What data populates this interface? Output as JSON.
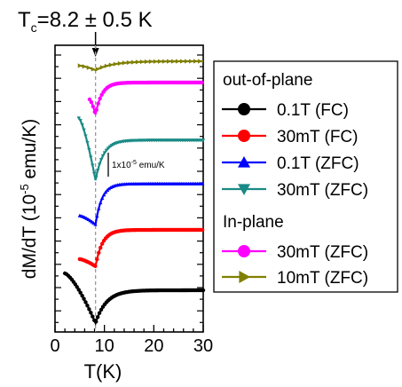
{
  "chart_data": {
    "type": "line",
    "annotation_title": "T",
    "annotation_title_sub": "c",
    "annotation_value": "=8.2 ± 0.5 K",
    "tc": 8.2,
    "xlabel": "T(K)",
    "ylabel_main": "dM/dT (10",
    "ylabel_exp": "-5",
    "ylabel_unit": " emu/K)",
    "xlim": [
      0,
      30
    ],
    "xticks": [
      0,
      10,
      20,
      30
    ],
    "scale_bar_label": "1x10",
    "scale_bar_exp": "-5",
    "scale_bar_unit": " emu/K",
    "legend": {
      "group1": "out-of-plane",
      "group2": "In-plane",
      "entries": [
        {
          "label": "0.1T (FC)",
          "color": "#000000",
          "marker": "circle"
        },
        {
          "label": "30mT (FC)",
          "color": "#ff0000",
          "marker": "circle"
        },
        {
          "label": "0.1T (ZFC)",
          "color": "#0000ff",
          "marker": "triangle-up"
        },
        {
          "label": "30mT (ZFC)",
          "color": "#1a8a86",
          "marker": "triangle-down"
        },
        {
          "label": "30mT (ZFC)",
          "color": "#ff00ff",
          "marker": "circle"
        },
        {
          "label": "10mT (ZFC)",
          "color": "#7f7f00",
          "marker": "triangle-right"
        }
      ]
    },
    "series": [
      {
        "name": "0.1T (FC)",
        "color": "#000000",
        "x_start": 2,
        "min_t": 8.2,
        "baseline_shift": 0,
        "depth": 1.0,
        "curves": "black"
      },
      {
        "name": "30mT (FC)",
        "color": "#ff0000",
        "x_start": 5,
        "min_t": 8.2,
        "baseline_shift": 0,
        "depth": 1.0,
        "curves": "red"
      },
      {
        "name": "0.1T (ZFC)",
        "color": "#0000ff",
        "x_start": 5,
        "min_t": 8.2,
        "baseline_shift": 0,
        "depth": 1.0,
        "curves": "blue"
      },
      {
        "name": "30mT (ZFC)",
        "color": "#1a8a86",
        "x_start": 5,
        "min_t": 8.2,
        "baseline_shift": 0,
        "depth": 1.0,
        "curves": "teal"
      },
      {
        "name": "30mT (ZFC)",
        "color": "#ff00ff",
        "x_start": 7,
        "min_t": 8.2,
        "baseline_shift": 0,
        "depth": 1.0,
        "curves": "magenta"
      },
      {
        "name": "10mT (ZFC)",
        "color": "#7f7f00",
        "x_start": 5,
        "min_t": 8.2,
        "baseline_shift": 0,
        "depth": 1.0,
        "curves": "olive"
      }
    ]
  }
}
